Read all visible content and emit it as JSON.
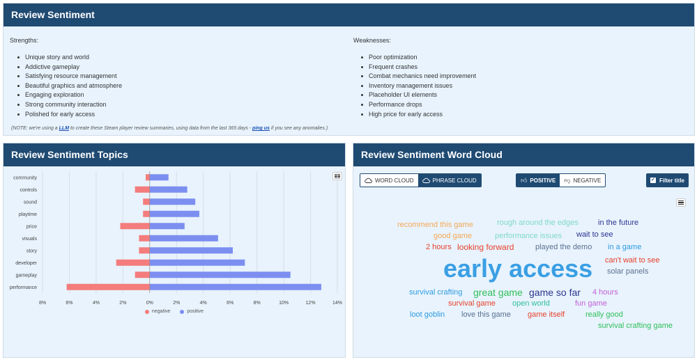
{
  "sentiment": {
    "title": "Review Sentiment",
    "strengths_title": "Strengths:",
    "strengths": [
      "Unique story and world",
      "Addictive gameplay",
      "Satisfying resource management",
      "Beautiful graphics and atmosphere",
      "Engaging exploration",
      "Strong community interaction",
      "Polished for early access"
    ],
    "weaknesses_title": "Weaknesses:",
    "weaknesses": [
      "Poor optimization",
      "Frequent crashes",
      "Combat mechanics need improvement",
      "Inventory management issues",
      "Placeholder UI elements",
      "Performance drops",
      "High price for early access"
    ],
    "note_pre": "(NOTE: we're using a ",
    "note_llm": "LLM",
    "note_mid": " to create these Steam player review summaries, using data from the last 365 days - ",
    "note_link": "ping us",
    "note_post": " if you see any anomalies.)"
  },
  "topics": {
    "title": "Review Sentiment Topics",
    "legend_negative": "negative",
    "legend_positive": "positive"
  },
  "chart_data": {
    "type": "bar",
    "orientation": "horizontal",
    "stacked": true,
    "categories": [
      "community",
      "controls",
      "sound",
      "playtime",
      "price",
      "visuals",
      "story",
      "developer",
      "gameplay",
      "performance"
    ],
    "series": [
      {
        "name": "negative",
        "color": "#f47c7c",
        "values": [
          -0.3,
          -1.1,
          -0.5,
          -0.5,
          -2.2,
          -0.8,
          -0.8,
          -2.5,
          -1.1,
          -6.2
        ]
      },
      {
        "name": "positive",
        "color": "#7c8ff0",
        "values": [
          1.4,
          2.8,
          3.4,
          3.7,
          2.6,
          5.1,
          6.2,
          7.1,
          10.5,
          12.8
        ]
      }
    ],
    "xlim": [
      -8,
      14
    ],
    "xticks": [
      -8,
      -6,
      -4,
      -2,
      0,
      2,
      4,
      6,
      8,
      10,
      12,
      14
    ],
    "xtick_labels": [
      "8%",
      "6%",
      "4%",
      "2%",
      "0%",
      "2%",
      "4%",
      "6%",
      "8%",
      "10%",
      "12%",
      "14%"
    ],
    "grid": true,
    "legend": "bottom"
  },
  "cloud": {
    "title": "Review Sentiment Word Cloud",
    "word_cloud_label": "WORD CLOUD",
    "phrase_cloud_label": "PHRASE CLOUD",
    "positive_label": "POSITIVE",
    "negative_label": "NEGATIVE",
    "filter_label": "Filter title",
    "words": [
      {
        "text": "recommend this game",
        "color": "#f5a855",
        "size": 11
      },
      {
        "text": "rough around the edges",
        "color": "#7fd8cc",
        "size": 11
      },
      {
        "text": "in the future",
        "color": "#2c3590",
        "size": 11
      },
      {
        "text": "good game",
        "color": "#f5a855",
        "size": 11
      },
      {
        "text": "performance issues",
        "color": "#7fd8cc",
        "size": 11
      },
      {
        "text": "wait to see",
        "color": "#2c3590",
        "size": 11
      },
      {
        "text": "2 hours",
        "color": "#e8402a",
        "size": 11
      },
      {
        "text": "looking forward",
        "color": "#e8402a",
        "size": 12
      },
      {
        "text": "played the demo",
        "color": "#5a7090",
        "size": 11
      },
      {
        "text": "in a game",
        "color": "#2d9be0",
        "size": 11
      },
      {
        "text": "early access",
        "color": "#3a9fe4",
        "size": 36
      },
      {
        "text": "can't wait to see",
        "color": "#e8402a",
        "size": 11
      },
      {
        "text": "solar panels",
        "color": "#5a7090",
        "size": 11
      },
      {
        "text": "survival crafting",
        "color": "#2d9be0",
        "size": 11
      },
      {
        "text": "great game",
        "color": "#2fbf5a",
        "size": 14
      },
      {
        "text": "game so far",
        "color": "#2c3590",
        "size": 14
      },
      {
        "text": "4 hours",
        "color": "#c35fd6",
        "size": 11
      },
      {
        "text": "survival game",
        "color": "#e8402a",
        "size": 11
      },
      {
        "text": "open world",
        "color": "#2fbf9c",
        "size": 11
      },
      {
        "text": "fun game",
        "color": "#c35fd6",
        "size": 11
      },
      {
        "text": "loot goblin",
        "color": "#2d9be0",
        "size": 11
      },
      {
        "text": "love this game",
        "color": "#5a7090",
        "size": 11
      },
      {
        "text": "game itself",
        "color": "#e8402a",
        "size": 11
      },
      {
        "text": "really good",
        "color": "#2fbf5a",
        "size": 11
      },
      {
        "text": "survival crafting game",
        "color": "#2fbf5a",
        "size": 11
      }
    ]
  }
}
